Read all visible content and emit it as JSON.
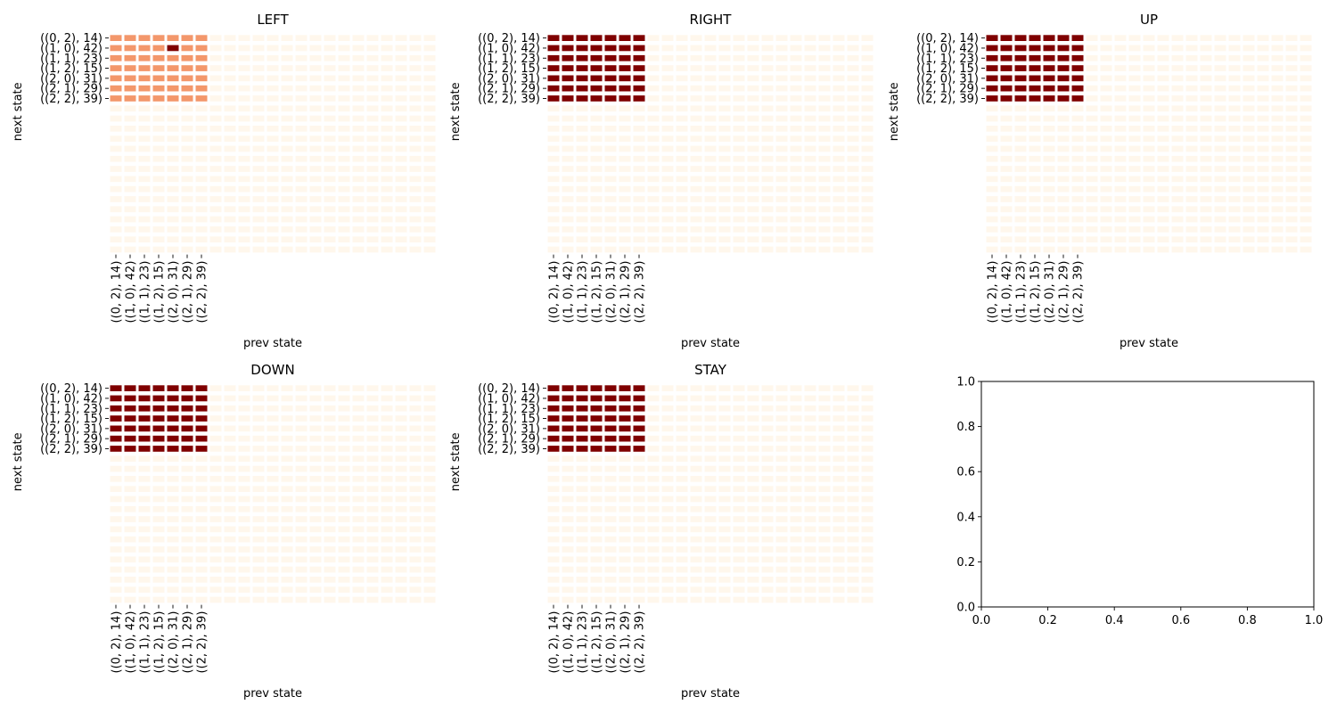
{
  "chart_data": {
    "type": "heatmap",
    "grid": {
      "rows": 22,
      "cols": 23
    },
    "tick_labels": [
      "((0, 2), 14)",
      "((1, 0), 42)",
      "((1, 1), 23)",
      "((1, 2), 15)",
      "((2, 0), 31)",
      "((2, 1), 29)",
      "((2, 2), 39)"
    ],
    "xlabel": "prev state",
    "ylabel": "next state",
    "colormap": "OrRd",
    "colors": {
      "background_cell": "#fff7ec",
      "dark": "#7f0000",
      "mid": "#f3976b"
    },
    "panels": [
      {
        "title": "LEFT",
        "active_value": 0.5,
        "overrides": [
          {
            "row": 1,
            "col": 4,
            "value": 1.0
          }
        ]
      },
      {
        "title": "RIGHT",
        "active_value": 1.0,
        "overrides": []
      },
      {
        "title": "UP",
        "active_value": 1.0,
        "overrides": []
      },
      {
        "title": "DOWN",
        "active_value": 1.0,
        "overrides": []
      },
      {
        "title": "STAY",
        "active_value": 1.0,
        "overrides": []
      }
    ],
    "empty_axes": {
      "xlim": [
        0.0,
        1.0
      ],
      "ylim": [
        0.0,
        1.0
      ],
      "xticks": [
        "0.0",
        "0.2",
        "0.4",
        "0.6",
        "0.8",
        "1.0"
      ],
      "yticks": [
        "0.0",
        "0.2",
        "0.4",
        "0.6",
        "0.8",
        "1.0"
      ]
    }
  }
}
